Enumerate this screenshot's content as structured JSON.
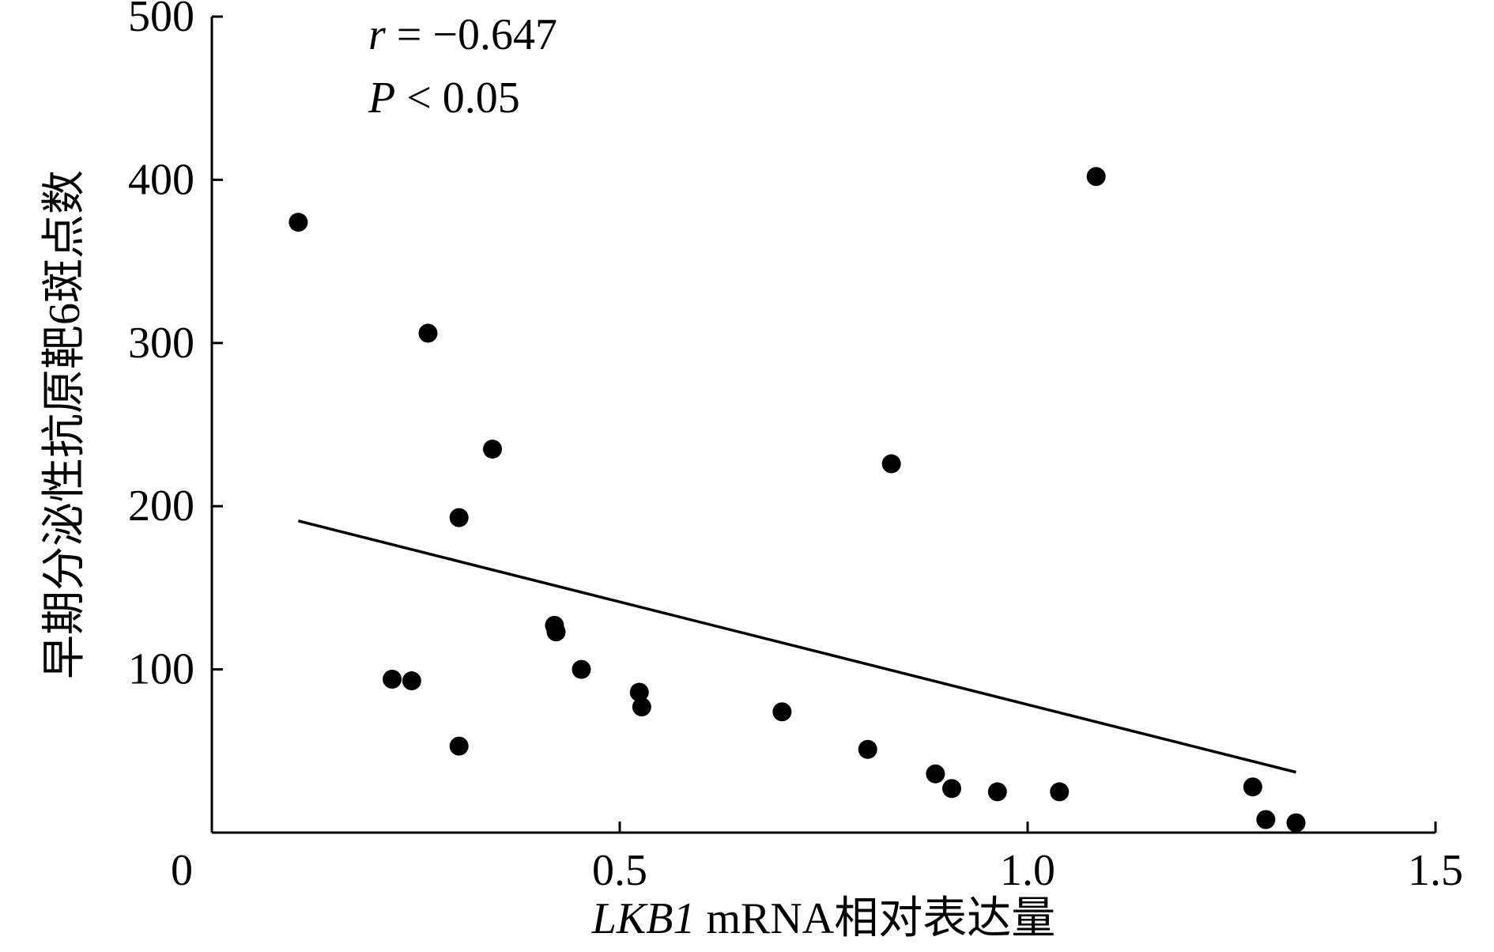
{
  "chart_data": {
    "type": "scatter",
    "x_label": {
      "italic": "LKB1",
      "text": " mRNA相对表达量"
    },
    "y_label": "早期分泌性抗原靶6斑点数",
    "annotations": [
      {
        "italic": "r",
        "text": " = −0.647"
      },
      {
        "italic": "P",
        "text": " < 0.05"
      }
    ],
    "color": "#000000",
    "xlim": [
      0,
      1.5
    ],
    "xticks": [
      0,
      0.5,
      {
        "value": 1,
        "label": "1.0"
      },
      1.5
    ],
    "ylim": [
      0,
      500
    ],
    "yticks": [
      100,
      200,
      300,
      400,
      500
    ],
    "x": [
      0.106,
      0.265,
      0.344,
      0.303,
      0.833,
      1.084,
      0.42,
      0.422,
      0.453,
      0.221,
      0.245,
      0.524,
      0.527,
      0.303,
      0.699,
      0.804,
      0.887,
      0.907,
      0.963,
      1.039,
      1.276,
      1.292,
      1.329
    ],
    "values": [
      374,
      306,
      235,
      193,
      226,
      402,
      127,
      123,
      100,
      94,
      93,
      86,
      77,
      53,
      74,
      51,
      36,
      27,
      25,
      25,
      28,
      8,
      6
    ],
    "fit": {
      "x": [
        0.106,
        1.329
      ],
      "y": [
        191,
        37
      ]
    }
  }
}
